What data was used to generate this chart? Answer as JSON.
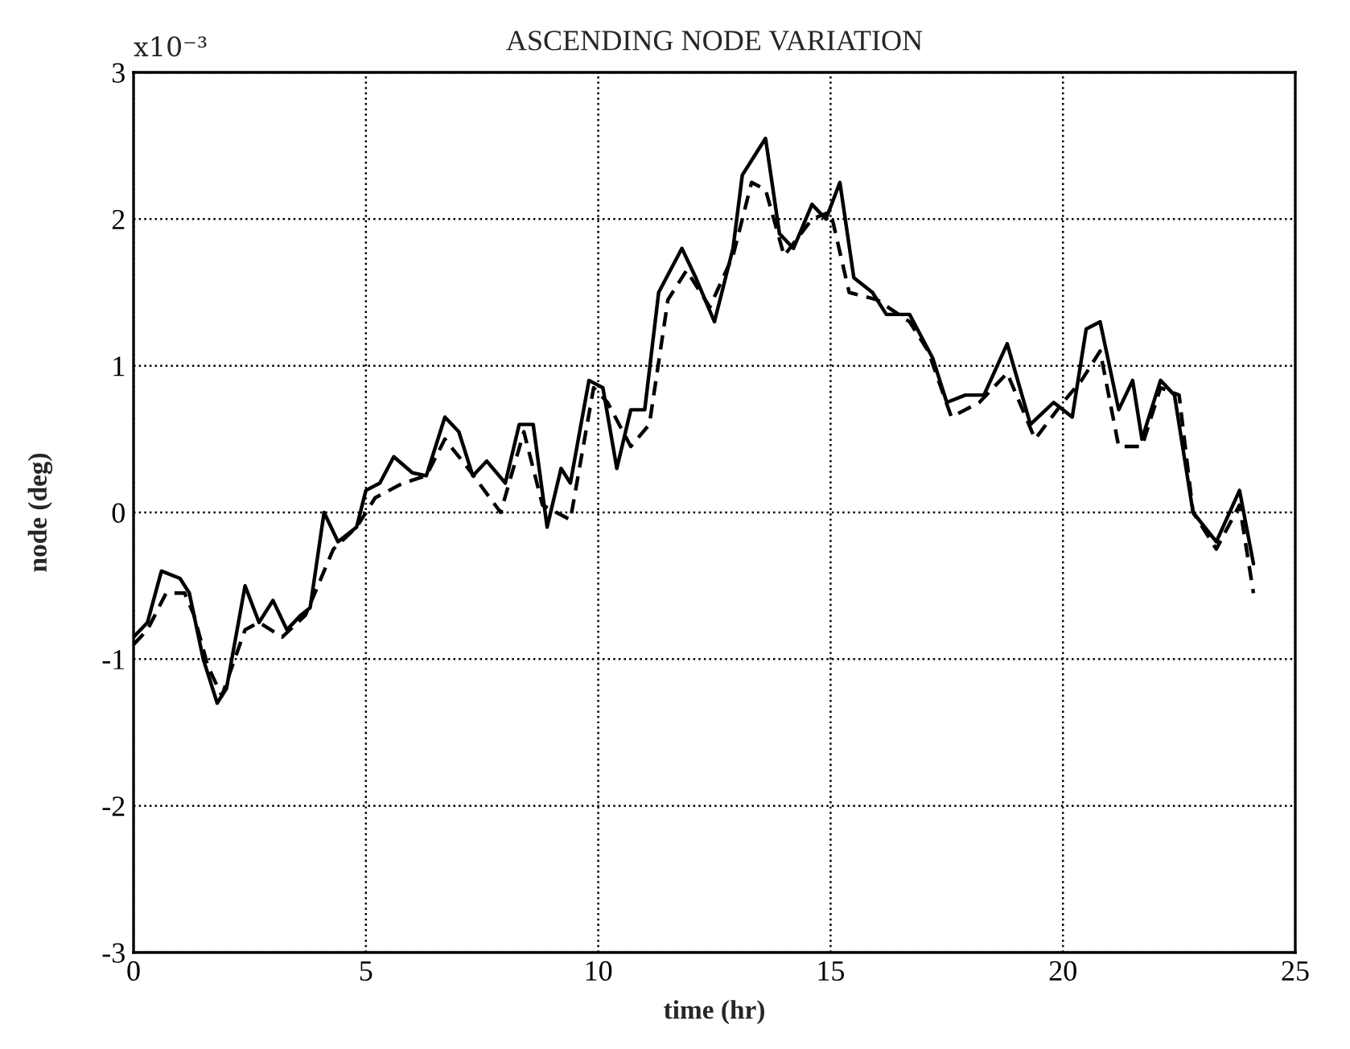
{
  "chart_data": {
    "type": "line",
    "title": "ASCENDING NODE VARIATION",
    "xlabel": "time (hr)",
    "ylabel": "node (deg)",
    "annotations": [
      "x10⁻³"
    ],
    "xlim": [
      0,
      25
    ],
    "ylim": [
      -3,
      3
    ],
    "xticks": [
      0,
      5,
      10,
      15,
      20,
      25
    ],
    "yticks": [
      -3,
      -2,
      -1,
      0,
      1,
      2,
      3
    ],
    "grid": true,
    "legend": false,
    "series": [
      {
        "color": "#000000",
        "line_style": "solid",
        "x": [
          0,
          0.3,
          0.6,
          1.0,
          1.2,
          1.5,
          1.8,
          2.0,
          2.4,
          2.7,
          3.0,
          3.3,
          3.6,
          3.8,
          4.1,
          4.4,
          4.8,
          5.0,
          5.3,
          5.6,
          6.0,
          6.3,
          6.7,
          7.0,
          7.3,
          7.6,
          8.0,
          8.3,
          8.6,
          8.9,
          9.2,
          9.4,
          9.8,
          10.1,
          10.4,
          10.7,
          11.0,
          11.3,
          11.8,
          12.1,
          12.5,
          12.9,
          13.1,
          13.4,
          13.6,
          13.9,
          14.2,
          14.6,
          14.9,
          15.2,
          15.5,
          15.9,
          16.2,
          16.7,
          17.2,
          17.5,
          17.9,
          18.3,
          18.8,
          19.3,
          19.8,
          20.2,
          20.5,
          20.8,
          21.2,
          21.5,
          21.7,
          22.1,
          22.4,
          22.8,
          23.3,
          23.8,
          24.1
        ],
        "values": [
          -0.85,
          -0.75,
          -0.4,
          -0.45,
          -0.55,
          -1.0,
          -1.3,
          -1.2,
          -0.5,
          -0.75,
          -0.6,
          -0.8,
          -0.7,
          -0.65,
          0.0,
          -0.2,
          -0.1,
          0.15,
          0.2,
          0.38,
          0.27,
          0.25,
          0.65,
          0.55,
          0.25,
          0.35,
          0.2,
          0.6,
          0.6,
          -0.1,
          0.3,
          0.2,
          0.9,
          0.85,
          0.3,
          0.7,
          0.7,
          1.5,
          1.8,
          1.6,
          1.3,
          1.8,
          2.3,
          2.45,
          2.55,
          1.9,
          1.8,
          2.1,
          2.0,
          2.25,
          1.6,
          1.5,
          1.35,
          1.35,
          1.05,
          0.75,
          0.8,
          0.8,
          1.15,
          0.6,
          0.75,
          0.65,
          1.25,
          1.3,
          0.7,
          0.9,
          0.5,
          0.9,
          0.8,
          0.0,
          -0.2,
          0.15,
          -0.35
        ]
      },
      {
        "color": "#000000",
        "line_style": "dashed",
        "x": [
          0,
          0.3,
          0.7,
          1.1,
          1.3,
          1.6,
          1.9,
          2.4,
          2.7,
          3.2,
          3.7,
          4.3,
          4.8,
          5.2,
          5.8,
          6.3,
          6.7,
          7.2,
          7.9,
          8.4,
          8.8,
          9.4,
          9.9,
          10.2,
          10.7,
          11.1,
          11.5,
          11.9,
          12.4,
          12.9,
          13.3,
          13.6,
          14.0,
          14.6,
          15.0,
          15.4,
          16.0,
          16.7,
          17.1,
          17.6,
          18.2,
          18.8,
          19.4,
          20.0,
          20.4,
          20.8,
          21.2,
          21.7,
          22.1,
          22.5,
          22.8,
          23.3,
          23.8,
          24.1
        ],
        "values": [
          -0.9,
          -0.8,
          -0.55,
          -0.55,
          -0.7,
          -1.05,
          -1.25,
          -0.8,
          -0.75,
          -0.85,
          -0.7,
          -0.25,
          -0.1,
          0.1,
          0.2,
          0.25,
          0.5,
          0.3,
          0.0,
          0.55,
          0.05,
          -0.05,
          0.85,
          0.75,
          0.45,
          0.6,
          1.45,
          1.65,
          1.4,
          1.75,
          2.25,
          2.2,
          1.75,
          2.0,
          2.05,
          1.5,
          1.45,
          1.3,
          1.1,
          0.65,
          0.75,
          0.95,
          0.5,
          0.75,
          0.9,
          1.1,
          0.45,
          0.45,
          0.85,
          0.8,
          0.0,
          -0.25,
          0.05,
          -0.55
        ]
      }
    ]
  }
}
